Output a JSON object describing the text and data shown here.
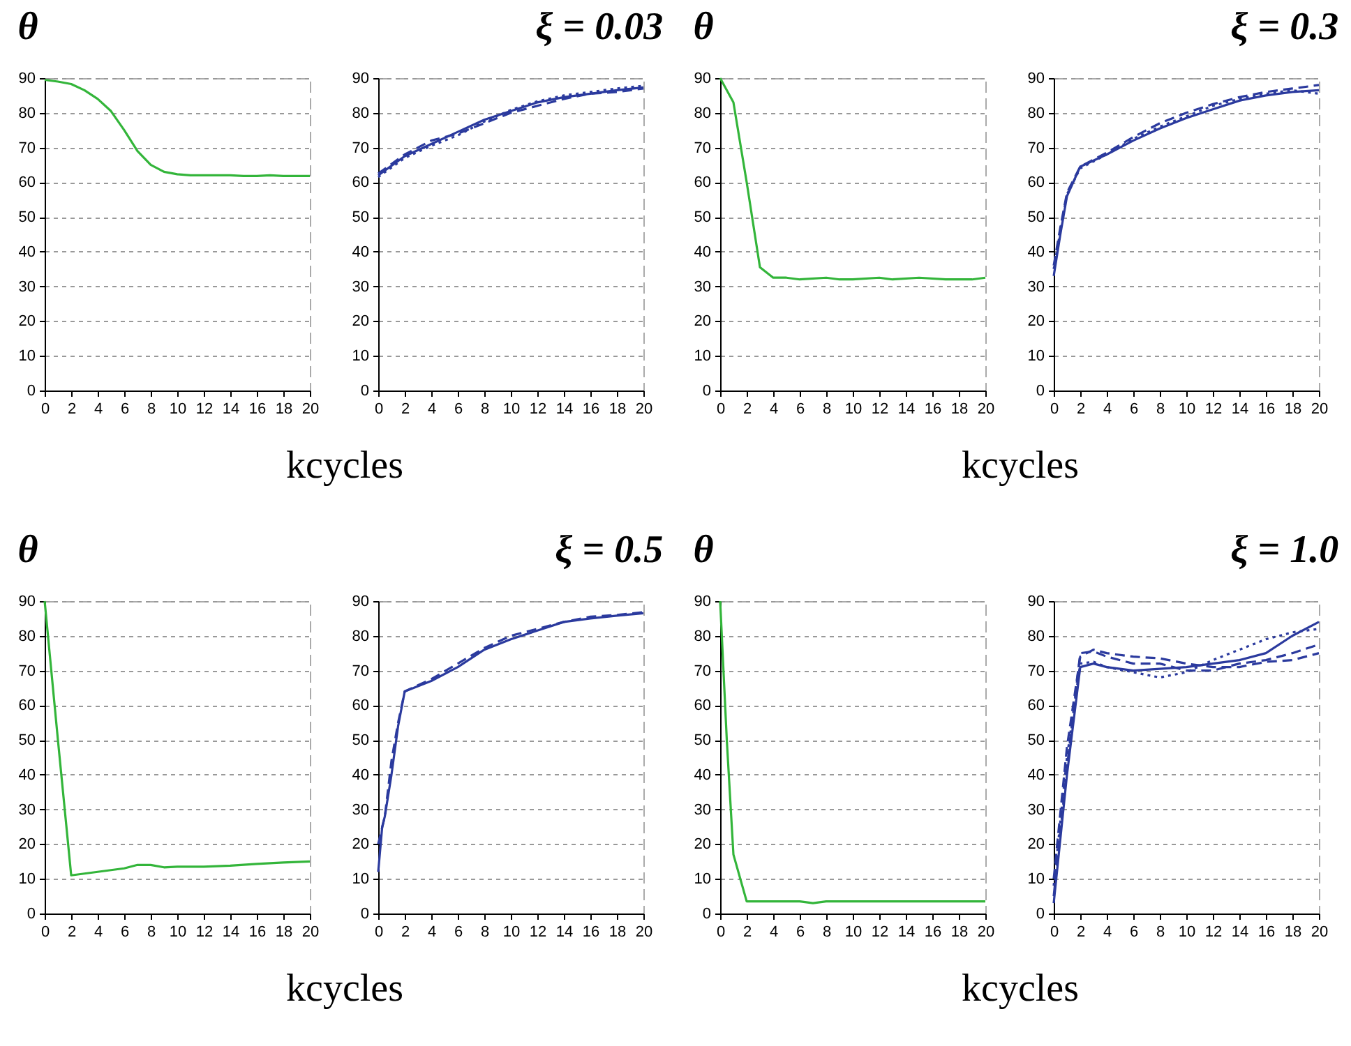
{
  "chart_data": [
    {
      "type": "line",
      "title": "θ",
      "xlabel": "kcycles",
      "x": [
        0,
        1,
        2,
        3,
        4,
        5,
        6,
        7,
        8,
        9,
        10,
        11,
        12,
        14,
        15,
        16,
        17,
        18,
        20
      ],
      "xlim": [
        0,
        20
      ],
      "xticks": [
        0,
        2,
        4,
        6,
        8,
        10,
        12,
        14,
        16,
        18,
        20
      ],
      "ylim": [
        0,
        90
      ],
      "yticks": [
        0,
        10,
        20,
        30,
        40,
        50,
        60,
        70,
        80,
        90
      ],
      "grid": "y",
      "series": [
        {
          "color": "#33b53a",
          "line_style": "solid",
          "values": [
            89.5,
            89,
            88.3,
            86.5,
            84,
            80.5,
            75,
            69,
            65,
            63,
            62.3,
            62,
            62,
            62,
            61.8,
            61.8,
            62,
            61.8,
            61.8
          ]
        }
      ]
    },
    {
      "type": "line",
      "title": "ξ = 0.03",
      "xlim": [
        0,
        20
      ],
      "xticks": [
        0,
        2,
        4,
        6,
        8,
        10,
        12,
        14,
        16,
        18,
        20
      ],
      "ylim": [
        0,
        90
      ],
      "yticks": [
        0,
        10,
        20,
        30,
        40,
        50,
        60,
        70,
        80,
        90
      ],
      "grid": "y",
      "series": [
        {
          "color": "#2b3a9e",
          "line_style": "solid",
          "x": [
            0,
            2,
            4,
            6,
            8,
            10,
            12,
            14,
            16,
            18,
            20
          ],
          "values": [
            62,
            67.5,
            71,
            74.5,
            78,
            80.5,
            83,
            84.5,
            85.5,
            86.5,
            87.3
          ]
        },
        {
          "color": "#2b3a9e",
          "line_style": "dashed",
          "x": [
            0,
            2,
            4,
            6,
            8,
            10,
            12,
            14,
            16,
            18,
            20
          ],
          "values": [
            62.5,
            68,
            72,
            74,
            77,
            80,
            82,
            84,
            85.5,
            86,
            87
          ]
        },
        {
          "color": "#2b3a9e",
          "line_style": "dotted",
          "x": [
            0,
            2,
            4,
            6,
            8,
            10,
            12,
            14,
            16,
            18,
            20
          ],
          "values": [
            61.5,
            67,
            70.5,
            73.5,
            77.5,
            80.8,
            83.3,
            85,
            86,
            87,
            87.8
          ]
        }
      ]
    },
    {
      "type": "line",
      "title": "θ",
      "xlabel": "kcycles",
      "x": [
        0,
        1,
        2,
        3,
        4,
        5,
        6,
        8,
        9,
        10,
        12,
        13,
        15,
        17,
        19,
        20
      ],
      "xlim": [
        0,
        20
      ],
      "xticks": [
        0,
        2,
        4,
        6,
        8,
        10,
        12,
        14,
        16,
        18,
        20
      ],
      "ylim": [
        0,
        90
      ],
      "yticks": [
        0,
        10,
        20,
        30,
        40,
        50,
        60,
        70,
        80,
        90
      ],
      "grid": "y",
      "series": [
        {
          "color": "#33b53a",
          "line_style": "solid",
          "values": [
            90,
            83,
            60,
            35.5,
            32.5,
            32.5,
            32,
            32.5,
            32,
            32,
            32.5,
            32,
            32.5,
            32,
            32,
            32.5
          ]
        }
      ]
    },
    {
      "type": "line",
      "title": "ξ = 0.3",
      "xlim": [
        0,
        20
      ],
      "xticks": [
        0,
        2,
        4,
        6,
        8,
        10,
        12,
        14,
        16,
        18,
        20
      ],
      "ylim": [
        0,
        90
      ],
      "yticks": [
        0,
        10,
        20,
        30,
        40,
        50,
        60,
        70,
        80,
        90
      ],
      "grid": "y",
      "series": [
        {
          "color": "#2b3a9e",
          "line_style": "solid",
          "x": [
            0,
            0.5,
            1,
            2,
            4,
            6,
            8,
            10,
            12,
            14,
            16,
            18,
            20
          ],
          "values": [
            33,
            45,
            56,
            64.5,
            68,
            72,
            75.5,
            78.5,
            81,
            83.5,
            85,
            86,
            86.5
          ]
        },
        {
          "color": "#2b3a9e",
          "line_style": "dashed",
          "x": [
            0,
            0.5,
            1,
            2,
            4,
            6,
            8,
            10,
            12,
            14,
            16,
            18,
            20
          ],
          "values": [
            36,
            47,
            57,
            64.5,
            68.5,
            73,
            77,
            80,
            82.5,
            84.5,
            86,
            87,
            88
          ]
        },
        {
          "color": "#2b3a9e",
          "line_style": "dotted",
          "x": [
            0,
            0.5,
            1,
            2,
            4,
            6,
            8,
            10,
            12,
            14,
            16,
            18,
            20
          ],
          "values": [
            35,
            46,
            56.5,
            64,
            68,
            72.5,
            76,
            79,
            82,
            84,
            85.5,
            86.5,
            85.5
          ]
        }
      ]
    },
    {
      "type": "line",
      "title": "θ",
      "xlabel": "kcycles",
      "x": [
        0,
        1,
        2,
        3,
        4,
        5,
        6,
        7,
        8,
        9,
        10,
        12,
        14,
        16,
        18,
        20
      ],
      "xlim": [
        0,
        20
      ],
      "xticks": [
        0,
        2,
        4,
        6,
        8,
        10,
        12,
        14,
        16,
        18,
        20
      ],
      "ylim": [
        0,
        90
      ],
      "yticks": [
        0,
        10,
        20,
        30,
        40,
        50,
        60,
        70,
        80,
        90
      ],
      "grid": "y",
      "series": [
        {
          "color": "#33b53a",
          "line_style": "solid",
          "values": [
            90,
            50,
            11,
            11.5,
            12,
            12.5,
            13,
            14,
            14,
            13.3,
            13.5,
            13.5,
            13.8,
            14.3,
            14.7,
            15
          ]
        }
      ]
    },
    {
      "type": "line",
      "title": "ξ = 0.5",
      "xlim": [
        0,
        20
      ],
      "xticks": [
        0,
        2,
        4,
        6,
        8,
        10,
        12,
        14,
        16,
        18,
        20
      ],
      "ylim": [
        0,
        90
      ],
      "yticks": [
        0,
        10,
        20,
        30,
        40,
        50,
        60,
        70,
        80,
        90
      ],
      "grid": "y",
      "series": [
        {
          "color": "#2b3a9e",
          "line_style": "solid",
          "x": [
            0,
            0.3,
            0.5,
            1,
            1.5,
            2,
            4,
            6,
            8,
            10,
            12,
            14,
            16,
            18,
            20
          ],
          "values": [
            12,
            25,
            28,
            40,
            54,
            64,
            67,
            71,
            76,
            79,
            81.5,
            84,
            85,
            85.8,
            86.5
          ]
        },
        {
          "color": "#2b3a9e",
          "line_style": "dashed",
          "x": [
            0,
            0.5,
            1,
            1.5,
            2,
            4,
            6,
            8,
            10,
            12,
            14,
            16,
            18,
            20
          ],
          "values": [
            20,
            28,
            44,
            55,
            64,
            67.5,
            72,
            76.5,
            80,
            82,
            84,
            85.5,
            86,
            86.8
          ]
        }
      ]
    },
    {
      "type": "line",
      "title": "θ",
      "xlabel": "kcycles",
      "x": [
        0,
        0.5,
        1,
        2,
        4,
        6,
        7,
        8,
        12,
        20
      ],
      "xlim": [
        0,
        20
      ],
      "xticks": [
        0,
        2,
        4,
        6,
        8,
        10,
        12,
        14,
        16,
        18,
        20
      ],
      "ylim": [
        0,
        90
      ],
      "yticks": [
        0,
        10,
        20,
        30,
        40,
        50,
        60,
        70,
        80,
        90
      ],
      "grid": "y",
      "series": [
        {
          "color": "#33b53a",
          "line_style": "solid",
          "values": [
            90,
            50,
            17,
            3.5,
            3.5,
            3.5,
            3,
            3.5,
            3.5,
            3.5
          ]
        }
      ]
    },
    {
      "type": "line",
      "title": "ξ = 1.0",
      "xlim": [
        0,
        20
      ],
      "xticks": [
        0,
        2,
        4,
        6,
        8,
        10,
        12,
        14,
        16,
        18,
        20
      ],
      "ylim": [
        0,
        90
      ],
      "yticks": [
        0,
        10,
        20,
        30,
        40,
        50,
        60,
        70,
        80,
        90
      ],
      "grid": "y",
      "series": [
        {
          "color": "#2b3a9e",
          "line_style": "solid",
          "x": [
            0,
            1,
            2,
            3,
            4,
            6,
            8,
            10,
            12,
            14,
            16,
            18,
            20
          ],
          "values": [
            3,
            40,
            71,
            72,
            71,
            70,
            70.5,
            71,
            72,
            73,
            75,
            80,
            84
          ]
        },
        {
          "color": "#2b3a9e",
          "line_style": "dashed",
          "x": [
            0,
            1,
            2,
            3,
            4,
            6,
            8,
            10,
            12,
            14,
            16,
            18,
            20
          ],
          "values": [
            5,
            42,
            75,
            75.5,
            74,
            72,
            72,
            70,
            70,
            72,
            73,
            75,
            77.5
          ]
        },
        {
          "color": "#2b3a9e",
          "line_style": "dotted",
          "x": [
            0,
            1,
            2,
            3,
            4,
            6,
            8,
            10,
            12,
            14,
            16,
            18,
            20
          ],
          "values": [
            8,
            45,
            72,
            72.5,
            71,
            69.5,
            68,
            69.5,
            73,
            76,
            79,
            81,
            82
          ]
        },
        {
          "color": "#2b3a9e",
          "line_style": "dashed",
          "x": [
            0,
            1,
            2,
            3,
            4,
            6,
            8,
            10,
            12,
            14,
            16,
            18,
            20
          ],
          "values": [
            10,
            48,
            74,
            76,
            75,
            74,
            73.5,
            72,
            71,
            71,
            72.5,
            73,
            75
          ]
        }
      ]
    }
  ]
}
